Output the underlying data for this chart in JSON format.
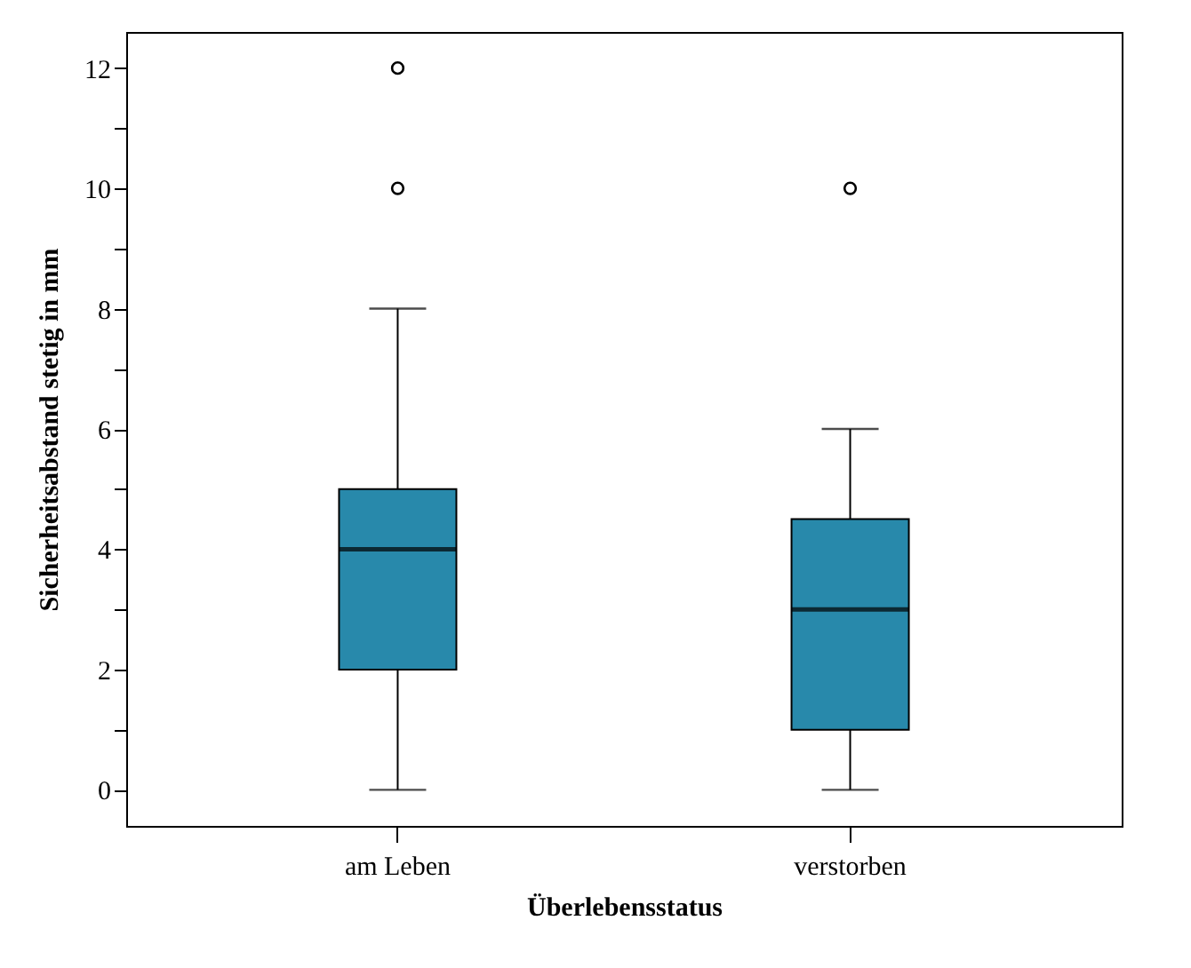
{
  "chart_data": {
    "type": "box",
    "xlabel": "Überlebensstatus",
    "ylabel": "Sicherheitsabstand stetig in mm",
    "categories": [
      "am Leben",
      "verstorben"
    ],
    "series": [
      {
        "color": "#2889ab",
        "boxes": [
          {
            "low": 0,
            "q1": 2,
            "median": 4,
            "q3": 5,
            "high": 8,
            "outliers": [
              10,
              12
            ]
          },
          {
            "low": 0,
            "q1": 1,
            "median": 3,
            "q3": 4.5,
            "high": 6,
            "outliers": [
              10
            ]
          }
        ]
      }
    ],
    "ylim": [
      -0.6,
      12.6
    ],
    "yticks": [
      0,
      {
        "value": 1,
        "label": null
      },
      2,
      {
        "value": 3,
        "label": null
      },
      4,
      {
        "value": 5,
        "label": null
      },
      6,
      {
        "value": 7,
        "label": null
      },
      8,
      {
        "value": 9,
        "label": null
      },
      10,
      {
        "value": 11,
        "label": null
      },
      12
    ]
  }
}
